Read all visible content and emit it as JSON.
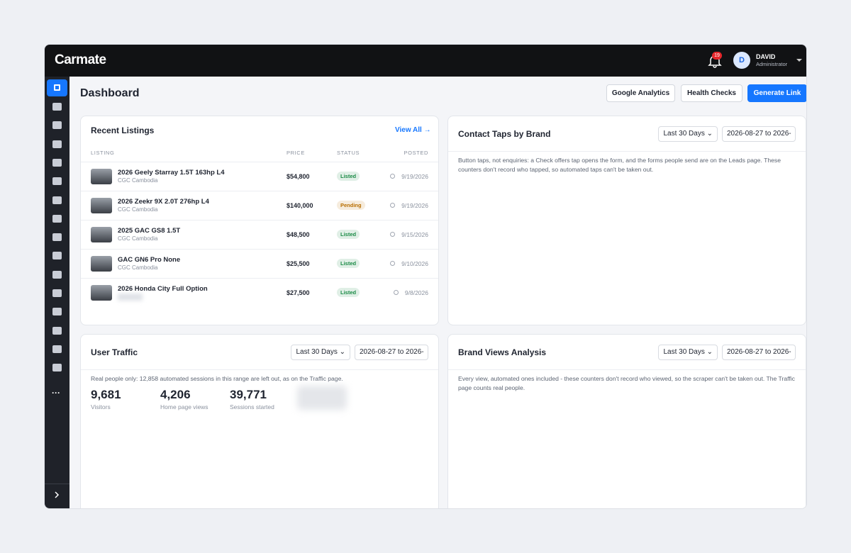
{
  "header": {
    "logo": "Carmate",
    "notifications": 19,
    "user": {
      "initial": "D",
      "name": "DAVID",
      "role": "Administrator"
    }
  },
  "page": {
    "title": "Dashboard",
    "buttons": [
      "Google Analytics",
      "Health Checks",
      "Generate Link"
    ]
  },
  "recent_listings": {
    "title": "Recent Listings",
    "view_all": "View All",
    "columns": [
      "LISTING",
      "PRICE",
      "STATUS",
      "POSTED"
    ],
    "rows": [
      {
        "name": "2026 Geely Starray 1.5T 163hp L4",
        "dealer": "CGC Cambodia",
        "price": "$54,800",
        "status": "Listed",
        "status_color": "#1a8a45",
        "posted": "9/19/2026"
      },
      {
        "name": "2026 Zeekr 9X 2.0T 276hp L4",
        "dealer": "CGC Cambodia",
        "price": "$140,000",
        "status": "Pending",
        "status_color": "#b86e00",
        "posted": "9/19/2026"
      },
      {
        "name": "2025 GAC GS8 1.5T",
        "dealer": "CGC Cambodia",
        "price": "$48,500",
        "status": "Listed",
        "status_color": "#1a8a45",
        "posted": "9/15/2026"
      },
      {
        "name": "GAC GN6 Pro None",
        "dealer": "CGC Cambodia",
        "price": "$25,500",
        "status": "Listed",
        "status_color": "#1a8a45",
        "posted": "9/10/2026"
      },
      {
        "name": "2026 Honda City Full Option",
        "price": "$27,500",
        "status": "Listed",
        "status_color": "#1a8a45",
        "posted": "9/8/2026"
      }
    ]
  },
  "contact_taps": {
    "title": "Contact Taps by Brand",
    "range": "Last 30 Days",
    "dates": "2026-08-27 to 2026-",
    "note": "Button taps, not enquiries: a Check offers tap opens the form, and the forms people send are on the Leads page. These counters don't record who tapped, so automated taps can't be taken out."
  },
  "user_traffic": {
    "title": "User Traffic",
    "range": "Last 30 Days",
    "dates": "2026-08-27 to 2026-",
    "note": "Real people only: 12,858 automated sessions in this range are left out, as on the Traffic page.",
    "stats": [
      {
        "value": "9,681",
        "label": "Visitors"
      },
      {
        "value": "4,206",
        "label": "Home page views"
      },
      {
        "value": "39,771",
        "label": "Sessions started"
      }
    ]
  },
  "brand_views": {
    "title": "Brand Views Analysis",
    "range": "Last 30 Days",
    "dates": "2026-08-27 to 2026-",
    "note": "Every view, automated ones included - these counters don't record who viewed, so the scraper can't be taken out. The Traffic page counts real people."
  }
}
